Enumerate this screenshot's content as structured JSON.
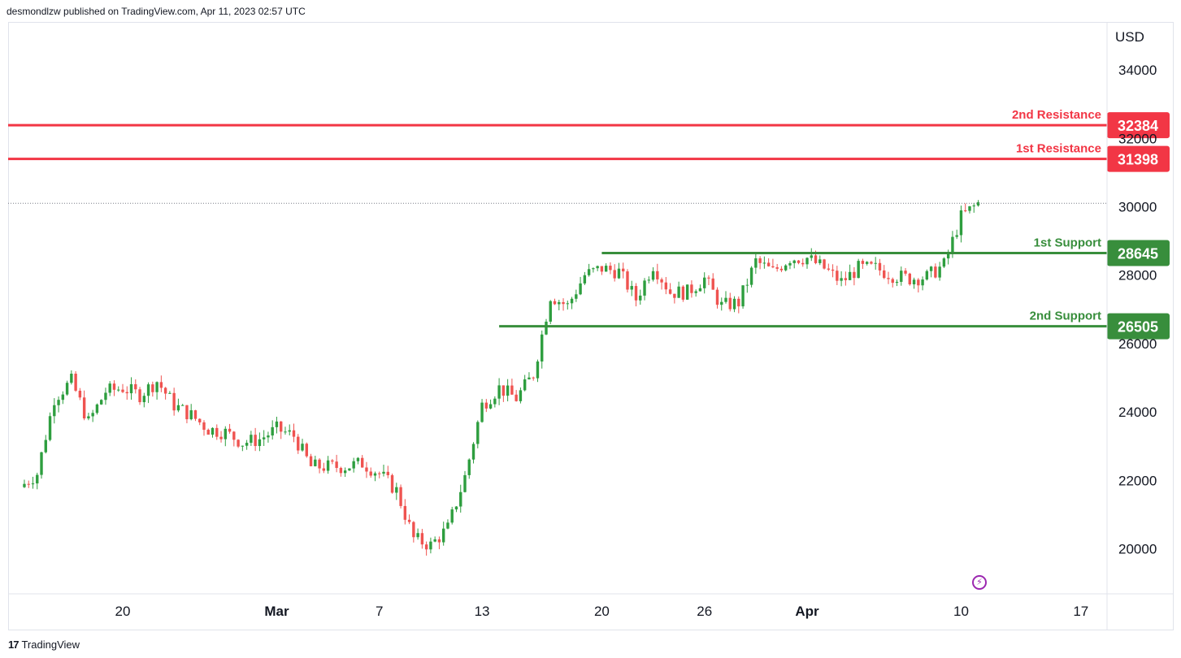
{
  "header": {
    "publisher_text": "desmondlzw published on TradingView.com, Apr 11, 2023 02:57 UTC"
  },
  "footer": {
    "logo_text": "17",
    "brand": "TradingView"
  },
  "colors": {
    "up": "#26a69a",
    "up_bar": "#2e9e3f",
    "down": "#ef5350",
    "resistance": "#f23645",
    "support": "#388e3c",
    "grid": "#f0f3fa",
    "axis_border": "#e0e3eb",
    "last_price_line": "#787b86",
    "replay": "#9c27b0"
  },
  "icons": {
    "replay": "lightning-replay-icon"
  },
  "chart_data": {
    "type": "candlestick",
    "currency": "USD",
    "y_ticks": [
      20000,
      22000,
      24000,
      26000,
      28000,
      30000,
      32000,
      34000
    ],
    "ylim": [
      18700,
      35000
    ],
    "x_ticks": [
      "20",
      "Mar",
      "7",
      "13",
      "20",
      "26",
      "Apr",
      "10",
      "17"
    ],
    "x_tick_bold": [
      "Mar",
      "Apr"
    ],
    "x_range_days": [
      "Feb 14",
      "Apr 17"
    ],
    "levels": [
      {
        "name": "2nd Resistance",
        "value": 32384,
        "label": "32384",
        "kind": "resistance"
      },
      {
        "name": "1st Resistance",
        "value": 31398,
        "label": "31398",
        "kind": "resistance"
      },
      {
        "name": "1st Support",
        "value": 28645,
        "label": "28645",
        "kind": "support",
        "from_day": "Mar 20"
      },
      {
        "name": "2nd Support",
        "value": 26505,
        "label": "26505",
        "kind": "support",
        "from_day": "Mar 14"
      }
    ],
    "last_price": 30100,
    "close_path": [
      [
        "Feb 14",
        21800
      ],
      [
        "Feb 15",
        22200
      ],
      [
        "Feb 16",
        24400
      ],
      [
        "Feb 17",
        24900
      ],
      [
        "Feb 18",
        23700
      ],
      [
        "Feb 19",
        24600
      ],
      [
        "Feb 20",
        24700
      ],
      [
        "Feb 21",
        24500
      ],
      [
        "Feb 22",
        24900
      ],
      [
        "Feb 23",
        24200
      ],
      [
        "Feb 24",
        23900
      ],
      [
        "Feb 25",
        23500
      ],
      [
        "Feb 26",
        23400
      ],
      [
        "Feb 27",
        23100
      ],
      [
        "Feb 28",
        23200
      ],
      [
        "Mar 1",
        23500
      ],
      [
        "Mar 2",
        23300
      ],
      [
        "Mar 3",
        22400
      ],
      [
        "Mar 4",
        22400
      ],
      [
        "Mar 5",
        22400
      ],
      [
        "Mar 6",
        22500
      ],
      [
        "Mar 7",
        22200
      ],
      [
        "Mar 8",
        21700
      ],
      [
        "Mar 9",
        20300
      ],
      [
        "Mar 10",
        20100
      ],
      [
        "Mar 11",
        20600
      ],
      [
        "Mar 12",
        22100
      ],
      [
        "Mar 13",
        24200
      ],
      [
        "Mar 14",
        24700
      ],
      [
        "Mar 15",
        24400
      ],
      [
        "Mar 16",
        25100
      ],
      [
        "Mar 17",
        27400
      ],
      [
        "Mar 18",
        27100
      ],
      [
        "Mar 19",
        28000
      ],
      [
        "Mar 20",
        28200
      ],
      [
        "Mar 21",
        28100
      ],
      [
        "Mar 22",
        27300
      ],
      [
        "Mar 23",
        28300
      ],
      [
        "Mar 24",
        27500
      ],
      [
        "Mar 25",
        27500
      ],
      [
        "Mar 26",
        27900
      ],
      [
        "Mar 27",
        27100
      ],
      [
        "Mar 28",
        27200
      ],
      [
        "Mar 29",
        28400
      ],
      [
        "Mar 30",
        28100
      ],
      [
        "Mar 31",
        28500
      ],
      [
        "Apr 1",
        28500
      ],
      [
        "Apr 2",
        28200
      ],
      [
        "Apr 3",
        27800
      ],
      [
        "Apr 4",
        28200
      ],
      [
        "Apr 5",
        28200
      ],
      [
        "Apr 6",
        28000
      ],
      [
        "Apr 7",
        27900
      ],
      [
        "Apr 8",
        27950
      ],
      [
        "Apr 9",
        28300
      ],
      [
        "Apr 10",
        29700
      ],
      [
        "Apr 11",
        30100
      ]
    ]
  }
}
